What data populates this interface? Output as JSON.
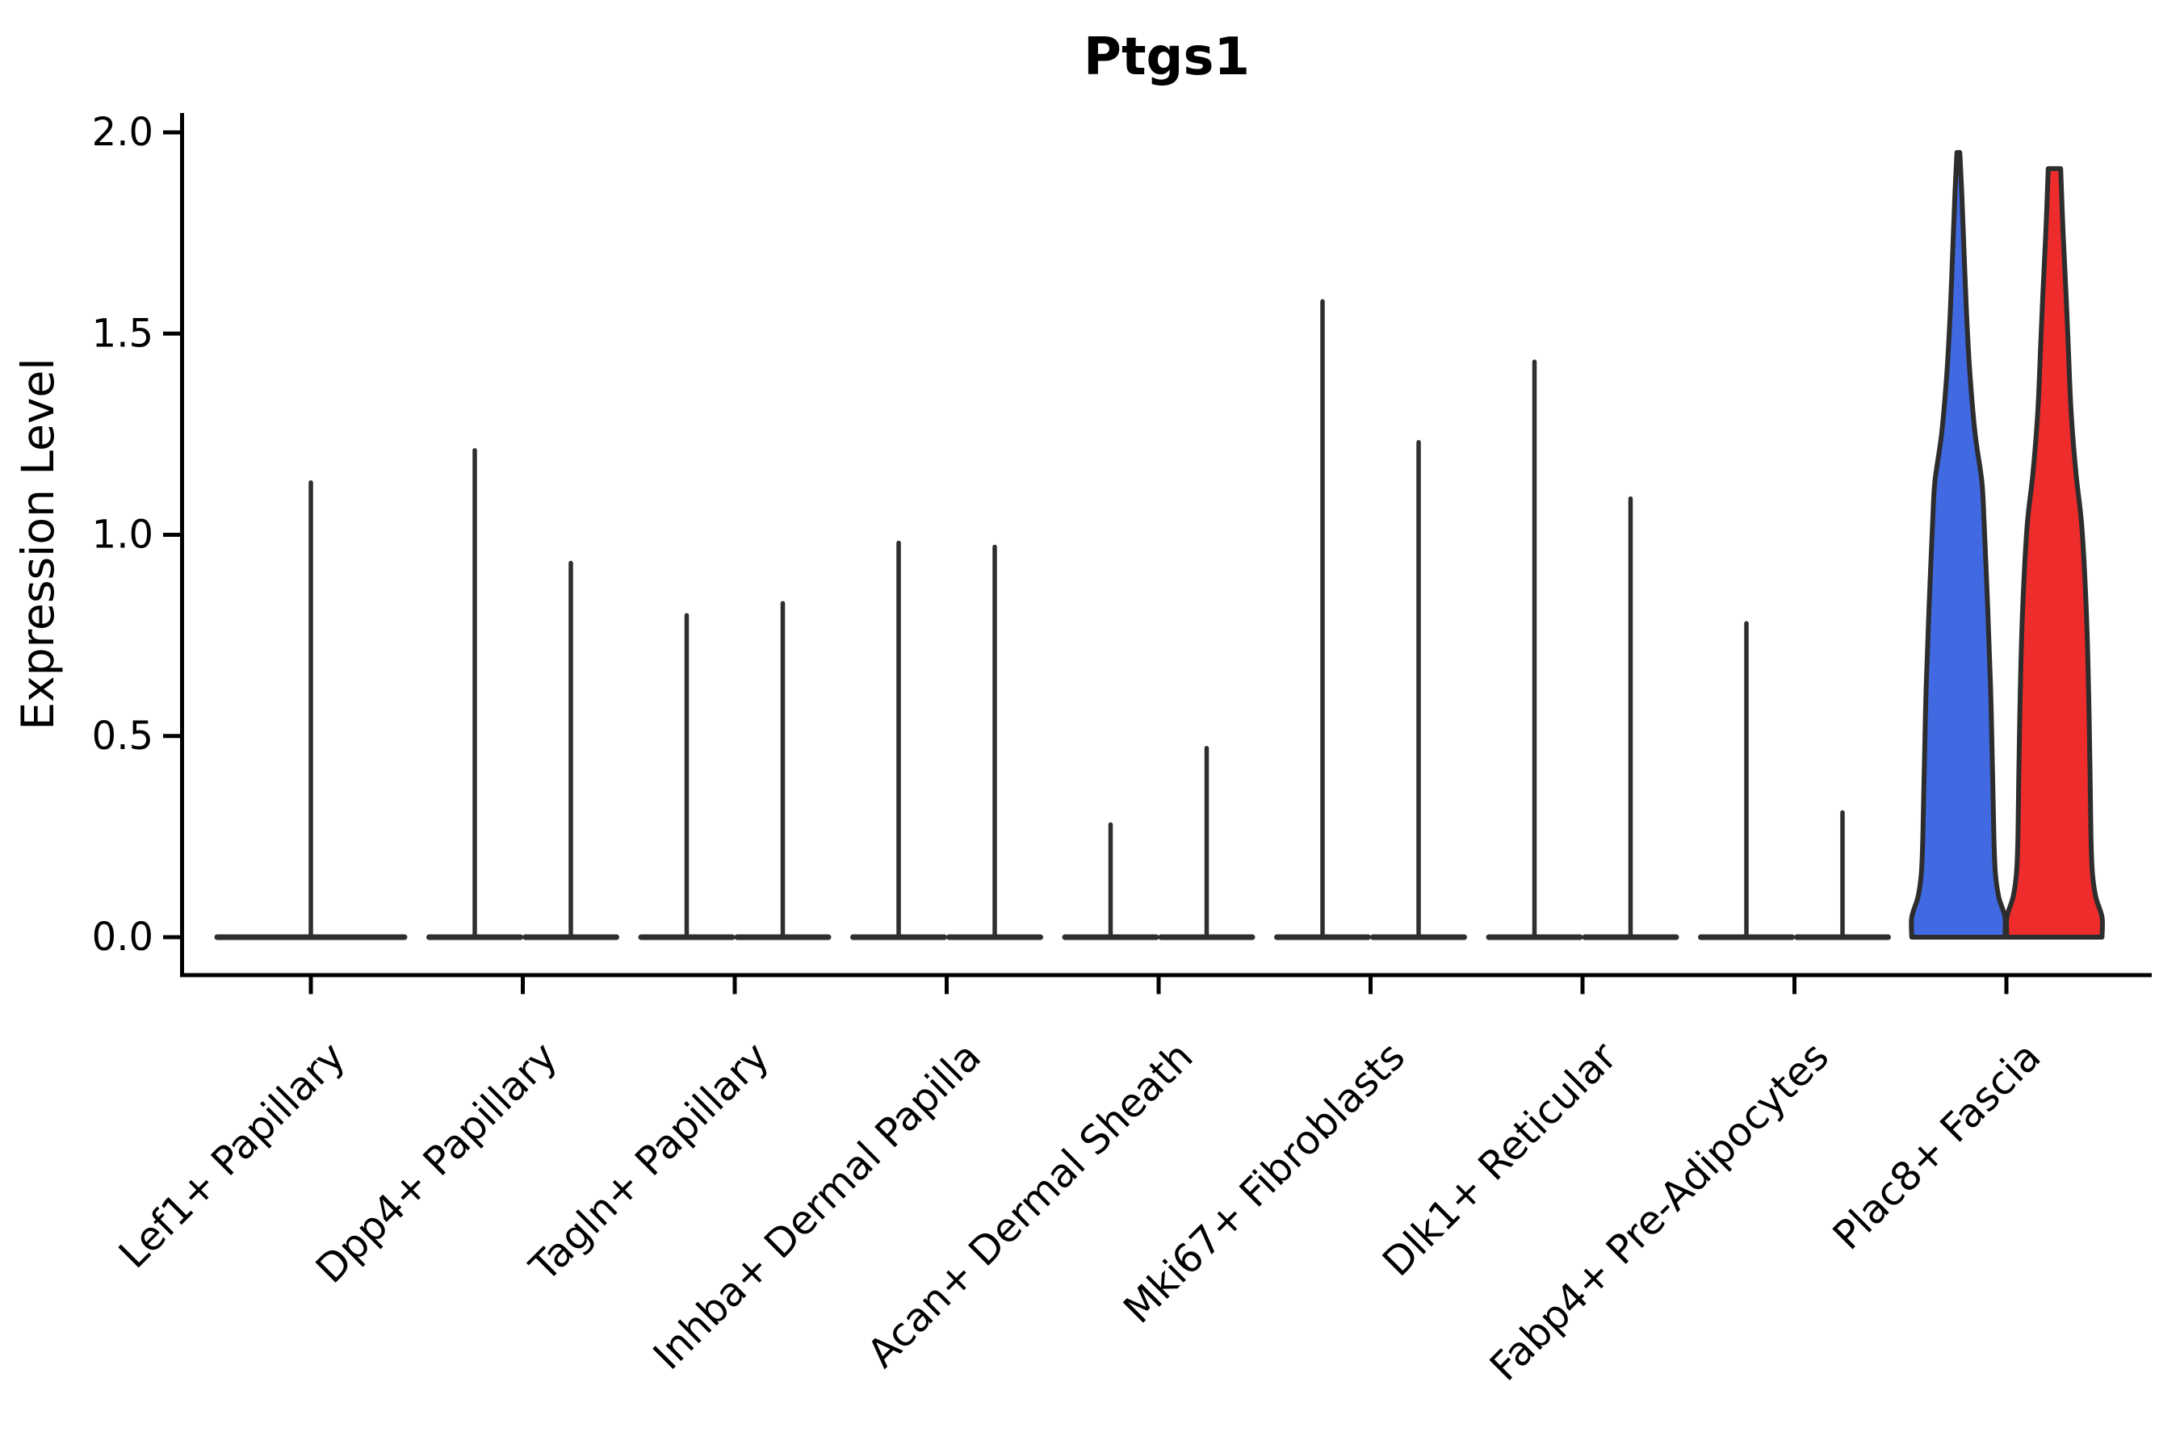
{
  "figure": {
    "background": "#ffffff",
    "title": "Ptgs1"
  },
  "chart_data": {
    "type": "violin",
    "title": "Ptgs1",
    "xlabel": "",
    "ylabel": "Expression Level",
    "ylim": [
      0,
      2.0
    ],
    "yticks": [
      0.0,
      0.5,
      1.0,
      1.5,
      2.0
    ],
    "ytick_labels": [
      "0.0",
      "0.5",
      "1.0",
      "1.5",
      "2.0"
    ],
    "x_tick_rotation": 45,
    "grid": false,
    "legend_position": "none",
    "categories": [
      "Lef1+ Papillary",
      "Dpp4+ Papillary",
      "Tagln+ Papillary",
      "Inhba+ Dermal Papilla",
      "Acan+ Dermal Sheath",
      "Mki67+ Fibroblasts",
      "Dlk1+ Reticular",
      "Fabp4+ Pre-Adipocytes",
      "Plac8+ Fascia"
    ],
    "colors": {
      "group_blue_fill": "#4169E1",
      "group_red_fill": "#EE2C2C",
      "violin_outline": "#2d2d2d",
      "spike_stroke": "#2e2e2e",
      "axis": "#000000"
    },
    "violins": [
      {
        "category_index": 0,
        "kind": "collapsed",
        "position": "center",
        "max_expression": 1.13
      },
      {
        "category_index": 1,
        "kind": "collapsed",
        "position": "left",
        "max_expression": 1.21
      },
      {
        "category_index": 1,
        "kind": "collapsed",
        "position": "right",
        "max_expression": 0.93
      },
      {
        "category_index": 2,
        "kind": "collapsed",
        "position": "left",
        "max_expression": 0.8
      },
      {
        "category_index": 2,
        "kind": "collapsed",
        "position": "right",
        "max_expression": 0.83
      },
      {
        "category_index": 3,
        "kind": "collapsed",
        "position": "left",
        "max_expression": 0.98
      },
      {
        "category_index": 3,
        "kind": "collapsed",
        "position": "right",
        "max_expression": 0.97
      },
      {
        "category_index": 4,
        "kind": "collapsed",
        "position": "left",
        "max_expression": 0.28
      },
      {
        "category_index": 4,
        "kind": "collapsed",
        "position": "right",
        "max_expression": 0.47
      },
      {
        "category_index": 5,
        "kind": "collapsed",
        "position": "left",
        "max_expression": 1.58
      },
      {
        "category_index": 5,
        "kind": "collapsed",
        "position": "right",
        "max_expression": 1.23
      },
      {
        "category_index": 6,
        "kind": "collapsed",
        "position": "left",
        "max_expression": 1.43
      },
      {
        "category_index": 6,
        "kind": "collapsed",
        "position": "right",
        "max_expression": 1.09
      },
      {
        "category_index": 7,
        "kind": "collapsed",
        "position": "left",
        "max_expression": 0.78
      },
      {
        "category_index": 7,
        "kind": "collapsed",
        "position": "right",
        "max_expression": 0.31
      },
      {
        "category_index": 8,
        "kind": "filled",
        "position": "left",
        "color_key": "group_blue_fill",
        "max_expression": 1.95,
        "top_style": "pointed",
        "profile": [
          [
            0.0,
            0.97
          ],
          [
            0.05,
            0.97
          ],
          [
            0.1,
            0.84
          ],
          [
            0.16,
            0.77
          ],
          [
            0.25,
            0.74
          ],
          [
            0.42,
            0.71
          ],
          [
            0.62,
            0.67
          ],
          [
            0.82,
            0.61
          ],
          [
            1.02,
            0.54
          ],
          [
            1.13,
            0.49
          ],
          [
            1.25,
            0.35
          ],
          [
            1.4,
            0.24
          ],
          [
            1.55,
            0.17
          ],
          [
            1.7,
            0.12
          ],
          [
            1.85,
            0.07
          ],
          [
            1.95,
            0.03
          ]
        ]
      },
      {
        "category_index": 8,
        "kind": "filled",
        "position": "right",
        "color_key": "group_red_fill",
        "max_expression": 1.91,
        "top_style": "flat",
        "profile": [
          [
            0.0,
            0.99
          ],
          [
            0.05,
            0.99
          ],
          [
            0.1,
            0.86
          ],
          [
            0.16,
            0.79
          ],
          [
            0.25,
            0.76
          ],
          [
            0.42,
            0.74
          ],
          [
            0.62,
            0.71
          ],
          [
            0.82,
            0.66
          ],
          [
            1.02,
            0.57
          ],
          [
            1.15,
            0.45
          ],
          [
            1.3,
            0.35
          ],
          [
            1.46,
            0.29
          ],
          [
            1.6,
            0.24
          ],
          [
            1.75,
            0.18
          ],
          [
            1.91,
            0.13
          ]
        ]
      }
    ]
  }
}
